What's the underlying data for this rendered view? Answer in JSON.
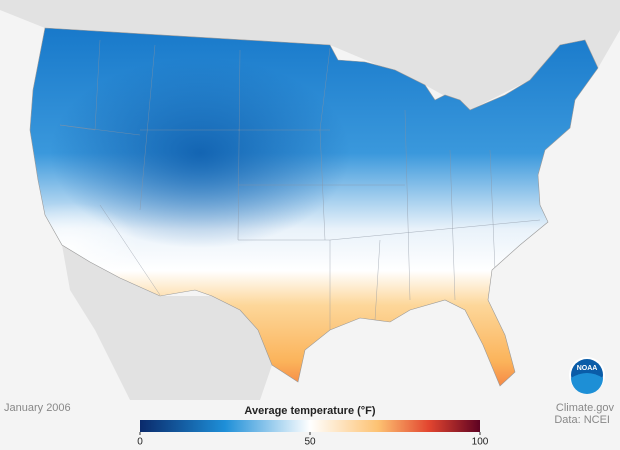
{
  "date": "January 2006",
  "legend": {
    "title": "Average temperature (°F)",
    "range": [
      0,
      100
    ],
    "ticks": [
      0,
      50,
      100
    ]
  },
  "credit": [
    "Climate.gov",
    "Data: NCEI"
  ],
  "logo": "NOAA"
}
